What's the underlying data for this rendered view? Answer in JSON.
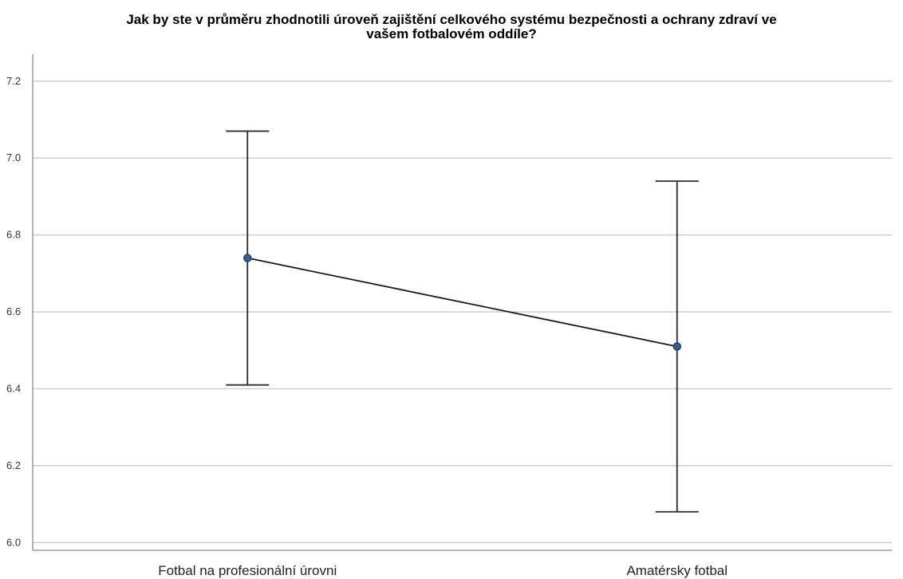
{
  "chart_data": {
    "type": "line",
    "title": [
      "Jak by ste v průměru zhodnotili úroveň zajištění celkového systému bezpečnosti a ochrany zdraví ve",
      "vašem fotbalovém oddíle?"
    ],
    "categories": [
      "Fotbal na profesionální úrovni",
      "Amatérsky fotbal"
    ],
    "series": [
      {
        "values": [
          6.74,
          6.51
        ],
        "ci_low": [
          6.41,
          6.08
        ],
        "ci_high": [
          7.07,
          6.94
        ]
      }
    ],
    "y_ticks": [
      "6.0",
      "6.2",
      "6.4",
      "6.6",
      "6.8",
      "7.0",
      "7.2"
    ],
    "ylim": [
      5.98,
      7.27
    ],
    "grid": true,
    "point_color": "#2f6496"
  }
}
